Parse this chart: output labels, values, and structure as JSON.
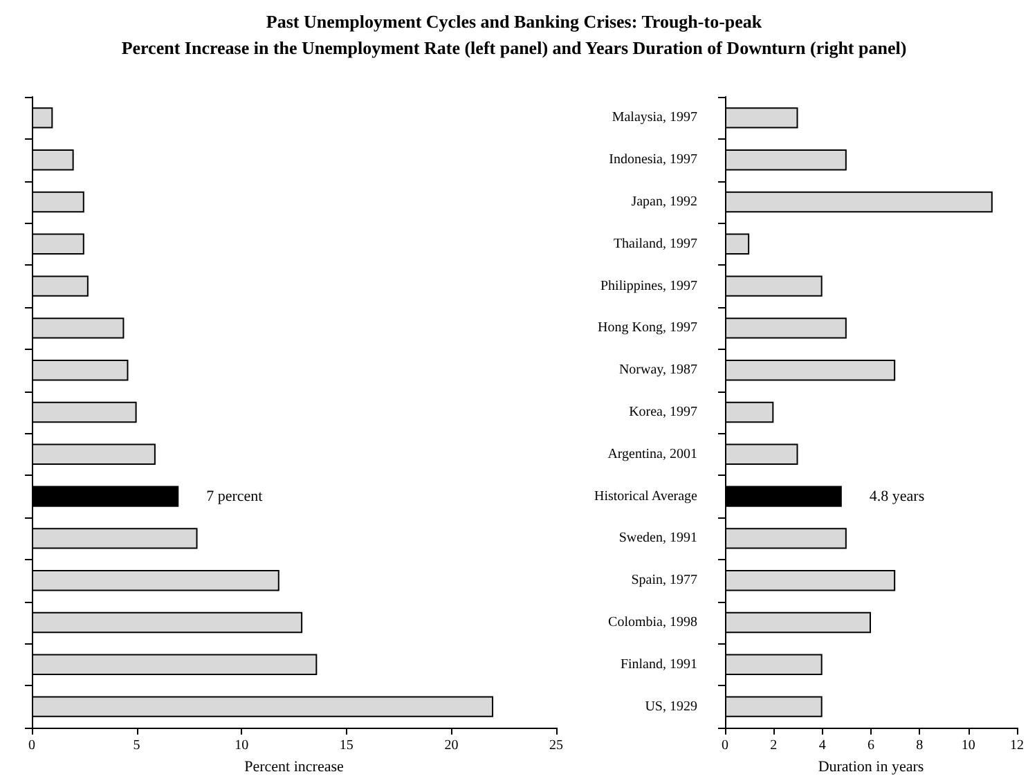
{
  "chart_data": [
    {
      "type": "bar",
      "title": "Past Unemployment Cycles and Banking Crises: Trough-to-peak",
      "subtitle": "Percent Increase in the Unemployment Rate (left panel) and Years Duration of Downturn (right panel)",
      "orientation": "horizontal",
      "xlabel": "Percent increase",
      "categories": [
        null,
        null,
        null,
        null,
        null,
        null,
        null,
        null,
        null,
        null,
        null,
        null,
        null,
        null,
        null
      ],
      "values": [
        1,
        2,
        2.5,
        2.5,
        2.7,
        4.4,
        4.6,
        5,
        5.9,
        7,
        7.9,
        11.8,
        12.9,
        13.6,
        22
      ],
      "value_labels": [
        null,
        null,
        null,
        null,
        null,
        null,
        null,
        null,
        null,
        "7 percent",
        null,
        null,
        null,
        null,
        null
      ],
      "colors": [
        "#d9d9d9",
        "#d9d9d9",
        "#d9d9d9",
        "#d9d9d9",
        "#d9d9d9",
        "#d9d9d9",
        "#d9d9d9",
        "#d9d9d9",
        "#d9d9d9",
        "#000000",
        "#d9d9d9",
        "#d9d9d9",
        "#d9d9d9",
        "#d9d9d9",
        "#d9d9d9"
      ],
      "xlim": [
        0,
        25
      ],
      "xticks": [
        0,
        5,
        10,
        15,
        20,
        25
      ],
      "grid": false
    },
    {
      "type": "bar",
      "orientation": "horizontal",
      "xlabel": "Duration in years",
      "categories": [
        "Malaysia, 1997",
        "Indonesia, 1997",
        "Japan, 1992",
        "Thailand, 1997",
        "Philippines, 1997",
        "Hong Kong, 1997",
        "Norway, 1987",
        "Korea, 1997",
        "Argentina, 2001",
        "Historical Average",
        "Sweden, 1991",
        "Spain, 1977",
        "Colombia, 1998",
        "Finland, 1991",
        "US, 1929"
      ],
      "values": [
        3,
        5,
        11,
        1,
        4,
        5,
        7,
        2,
        3,
        4.8,
        5,
        7,
        6,
        4,
        4
      ],
      "value_labels": [
        null,
        null,
        null,
        null,
        null,
        null,
        null,
        null,
        null,
        "4.8 years",
        null,
        null,
        null,
        null,
        null
      ],
      "colors": [
        "#d9d9d9",
        "#d9d9d9",
        "#d9d9d9",
        "#d9d9d9",
        "#d9d9d9",
        "#d9d9d9",
        "#d9d9d9",
        "#d9d9d9",
        "#d9d9d9",
        "#000000",
        "#d9d9d9",
        "#d9d9d9",
        "#d9d9d9",
        "#d9d9d9",
        "#d9d9d9"
      ],
      "xlim": [
        0,
        12
      ],
      "xticks": [
        0,
        2,
        4,
        6,
        8,
        10,
        12
      ],
      "grid": false
    }
  ]
}
